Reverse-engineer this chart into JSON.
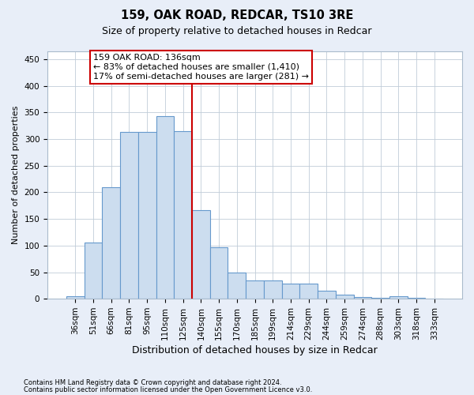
{
  "title": "159, OAK ROAD, REDCAR, TS10 3RE",
  "subtitle": "Size of property relative to detached houses in Redcar",
  "xlabel": "Distribution of detached houses by size in Redcar",
  "ylabel": "Number of detached properties",
  "footer1": "Contains HM Land Registry data © Crown copyright and database right 2024.",
  "footer2": "Contains public sector information licensed under the Open Government Licence v3.0.",
  "categories": [
    "36sqm",
    "51sqm",
    "66sqm",
    "81sqm",
    "95sqm",
    "110sqm",
    "125sqm",
    "140sqm",
    "155sqm",
    "170sqm",
    "185sqm",
    "199sqm",
    "214sqm",
    "229sqm",
    "244sqm",
    "259sqm",
    "274sqm",
    "288sqm",
    "303sqm",
    "318sqm",
    "333sqm"
  ],
  "values": [
    5,
    106,
    210,
    313,
    313,
    343,
    315,
    167,
    97,
    50,
    35,
    35,
    29,
    29,
    15,
    8,
    4,
    2,
    5,
    2,
    1
  ],
  "bar_color": "#ccddef",
  "bar_edge_color": "#6699cc",
  "vline_index": 7,
  "vline_color": "#cc0000",
  "annotation_line1": "159 OAK ROAD: 136sqm",
  "annotation_line2": "← 83% of detached houses are smaller (1,410)",
  "annotation_line3": "17% of semi-detached houses are larger (281) →",
  "annotation_box_color": "#ffffff",
  "annotation_box_edge_color": "#cc0000",
  "ylim": [
    0,
    465
  ],
  "yticks": [
    0,
    50,
    100,
    150,
    200,
    250,
    300,
    350,
    400,
    450
  ],
  "bg_color": "#e8eef8",
  "plot_bg_color": "#ffffff",
  "grid_color": "#c0ccd8",
  "title_fontsize": 10.5,
  "subtitle_fontsize": 9,
  "tick_fontsize": 7.5,
  "ylabel_fontsize": 8,
  "xlabel_fontsize": 9,
  "annotation_fontsize": 8
}
